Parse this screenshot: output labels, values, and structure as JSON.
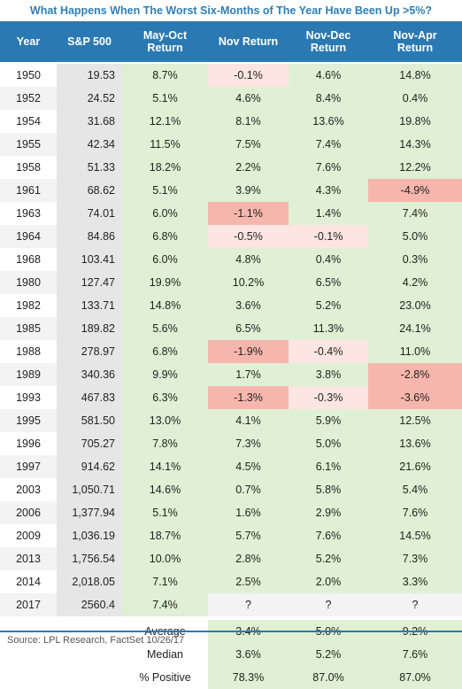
{
  "title": "What Happens When The Worst Six-Months of The Year Have Been Up >5%?",
  "source": "Source: LPL Research, FactSet 10/26/17",
  "chart_data": {
    "type": "table",
    "columns": [
      "Year",
      "S&P 500",
      "May-Oct\nReturn",
      "Nov Return",
      "Nov-Dec\nReturn",
      "Nov-Apr\nReturn"
    ],
    "rows": [
      [
        "1950",
        "19.53",
        "8.7%",
        "-0.1%",
        "4.6%",
        "14.8%"
      ],
      [
        "1952",
        "24.52",
        "5.1%",
        "4.6%",
        "8.4%",
        "0.4%"
      ],
      [
        "1954",
        "31.68",
        "12.1%",
        "8.1%",
        "13.6%",
        "19.8%"
      ],
      [
        "1955",
        "42.34",
        "11.5%",
        "7.5%",
        "7.4%",
        "14.3%"
      ],
      [
        "1958",
        "51.33",
        "18.2%",
        "2.2%",
        "7.6%",
        "12.2%"
      ],
      [
        "1961",
        "68.62",
        "5.1%",
        "3.9%",
        "4.3%",
        "-4.9%"
      ],
      [
        "1963",
        "74.01",
        "6.0%",
        "-1.1%",
        "1.4%",
        "7.4%"
      ],
      [
        "1964",
        "84.86",
        "6.8%",
        "-0.5%",
        "-0.1%",
        "5.0%"
      ],
      [
        "1968",
        "103.41",
        "6.0%",
        "4.8%",
        "0.4%",
        "0.3%"
      ],
      [
        "1980",
        "127.47",
        "19.9%",
        "10.2%",
        "6.5%",
        "4.2%"
      ],
      [
        "1982",
        "133.71",
        "14.8%",
        "3.6%",
        "5.2%",
        "23.0%"
      ],
      [
        "1985",
        "189.82",
        "5.6%",
        "6.5%",
        "11.3%",
        "24.1%"
      ],
      [
        "1988",
        "278.97",
        "6.8%",
        "-1.9%",
        "-0.4%",
        "11.0%"
      ],
      [
        "1989",
        "340.36",
        "9.9%",
        "1.7%",
        "3.8%",
        "-2.8%"
      ],
      [
        "1993",
        "467.83",
        "6.3%",
        "-1.3%",
        "-0.3%",
        "-3.6%"
      ],
      [
        "1995",
        "581.50",
        "13.0%",
        "4.1%",
        "5.9%",
        "12.5%"
      ],
      [
        "1996",
        "705.27",
        "7.8%",
        "7.3%",
        "5.0%",
        "13.6%"
      ],
      [
        "1997",
        "914.62",
        "14.1%",
        "4.5%",
        "6.1%",
        "21.6%"
      ],
      [
        "2003",
        "1,050.71",
        "14.6%",
        "0.7%",
        "5.8%",
        "5.4%"
      ],
      [
        "2006",
        "1,377.94",
        "5.1%",
        "1.6%",
        "2.9%",
        "7.6%"
      ],
      [
        "2009",
        "1,036.19",
        "18.7%",
        "5.7%",
        "7.6%",
        "14.5%"
      ],
      [
        "2013",
        "1,756.54",
        "10.0%",
        "2.8%",
        "5.2%",
        "7.3%"
      ],
      [
        "2014",
        "2,018.05",
        "7.1%",
        "2.5%",
        "2.0%",
        "3.3%"
      ],
      [
        "2017",
        "2560.4",
        "7.4%",
        "?",
        "?",
        "?"
      ]
    ],
    "summary": [
      {
        "label": "Average",
        "values": [
          "3.4%",
          "5.0%",
          "9.2%"
        ]
      },
      {
        "label": "Median",
        "values": [
          "3.6%",
          "5.2%",
          "7.6%"
        ]
      },
      {
        "label": "% Positive",
        "values": [
          "78.3%",
          "87.0%",
          "87.0%"
        ]
      }
    ]
  },
  "colors": {
    "header_bg": "#2b79b3",
    "title": "#2e7fb8",
    "positive": "#dff0d4",
    "slight_negative": "#fde5e1",
    "negative": "#f7b6ad"
  }
}
